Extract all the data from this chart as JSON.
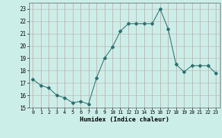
{
  "x": [
    0,
    1,
    2,
    3,
    4,
    5,
    6,
    7,
    8,
    9,
    10,
    11,
    12,
    13,
    14,
    15,
    16,
    17,
    18,
    19,
    20,
    21,
    22,
    23
  ],
  "y": [
    17.3,
    16.8,
    16.6,
    16.0,
    15.8,
    15.4,
    15.5,
    15.3,
    17.4,
    19.0,
    19.9,
    21.2,
    21.8,
    21.8,
    21.8,
    21.8,
    23.0,
    21.4,
    18.5,
    17.9,
    18.4,
    18.4,
    18.4,
    17.8
  ],
  "line_color": "#2d7070",
  "marker": "D",
  "marker_size": 2.2,
  "bg_color": "#cceee8",
  "grid_color": "#b8b8b8",
  "grid_color_v": "#cc9999",
  "xlabel": "Humidex (Indice chaleur)",
  "ylim": [
    15,
    23.5
  ],
  "yticks": [
    15,
    16,
    17,
    18,
    19,
    20,
    21,
    22,
    23
  ],
  "xticks": [
    0,
    1,
    2,
    3,
    4,
    5,
    6,
    7,
    8,
    9,
    10,
    11,
    12,
    13,
    14,
    15,
    16,
    17,
    18,
    19,
    20,
    21,
    22,
    23
  ]
}
